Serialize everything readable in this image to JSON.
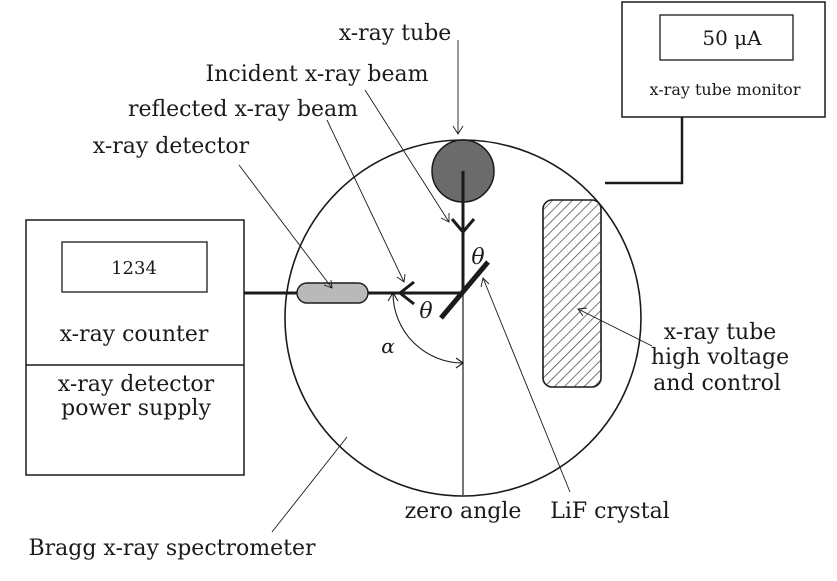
{
  "labels": {
    "xray_tube": "x-ray tube",
    "incident_beam": "Incident x-ray beam",
    "reflected_beam": "reflected x-ray beam",
    "xray_detector": "x-ray detector",
    "xray_counter": "x-ray counter",
    "detector_power_line1": "x-ray detector",
    "detector_power_line2": "power supply",
    "hv_line1": "x-ray tube",
    "hv_line2": "high voltage",
    "hv_line3": "and control",
    "zero_angle": "zero angle",
    "lif_crystal": "LiF crystal",
    "bragg_spectrometer": "Bragg x-ray spectrometer",
    "theta_top": "θ",
    "theta_left": "θ",
    "alpha": "α"
  },
  "monitor": {
    "display_value": "50 μA",
    "caption": "x-ray tube monitor"
  },
  "counter": {
    "display_value": "1234"
  },
  "colors": {
    "line": "#1a1a1a",
    "tube_fill": "#6b6b6b",
    "detector_fill": "#b9b9b9",
    "hatch": "#555555"
  }
}
